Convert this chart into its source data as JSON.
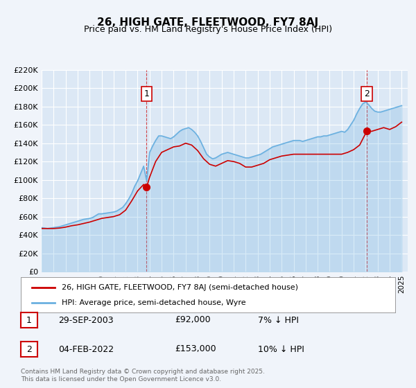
{
  "title": "26, HIGH GATE, FLEETWOOD, FY7 8AJ",
  "subtitle": "Price paid vs. HM Land Registry's House Price Index (HPI)",
  "background_color": "#f0f4fa",
  "plot_bg_color": "#dce8f5",
  "hpi_color": "#6ab0e0",
  "price_color": "#cc0000",
  "ylim": [
    0,
    220000
  ],
  "ytick_values": [
    0,
    20000,
    40000,
    60000,
    80000,
    100000,
    120000,
    140000,
    160000,
    180000,
    200000,
    220000
  ],
  "ytick_labels": [
    "£0",
    "£20K",
    "£40K",
    "£60K",
    "£80K",
    "£100K",
    "£120K",
    "£140K",
    "£160K",
    "£180K",
    "£200K",
    "£220K"
  ],
  "xlim_start": 1995.0,
  "xlim_end": 2025.5,
  "sale1_x": 2003.747,
  "sale1_y": 92000,
  "sale1_label": "1",
  "sale1_date": "29-SEP-2003",
  "sale1_price": "£92,000",
  "sale1_hpi": "7% ↓ HPI",
  "sale2_x": 2022.087,
  "sale2_y": 153000,
  "sale2_label": "2",
  "sale2_date": "04-FEB-2022",
  "sale2_price": "£153,000",
  "sale2_hpi": "10% ↓ HPI",
  "legend_label1": "26, HIGH GATE, FLEETWOOD, FY7 8AJ (semi-detached house)",
  "legend_label2": "HPI: Average price, semi-detached house, Wyre",
  "footer": "Contains HM Land Registry data © Crown copyright and database right 2025.\nThis data is licensed under the Open Government Licence v3.0.",
  "hpi_data": {
    "years": [
      1995.0,
      1995.25,
      1995.5,
      1995.75,
      1996.0,
      1996.25,
      1996.5,
      1996.75,
      1997.0,
      1997.25,
      1997.5,
      1997.75,
      1998.0,
      1998.25,
      1998.5,
      1998.75,
      1999.0,
      1999.25,
      1999.5,
      1999.75,
      2000.0,
      2000.25,
      2000.5,
      2000.75,
      2001.0,
      2001.25,
      2001.5,
      2001.75,
      2002.0,
      2002.25,
      2002.5,
      2002.75,
      2003.0,
      2003.25,
      2003.5,
      2003.75,
      2004.0,
      2004.25,
      2004.5,
      2004.75,
      2005.0,
      2005.25,
      2005.5,
      2005.75,
      2006.0,
      2006.25,
      2006.5,
      2006.75,
      2007.0,
      2007.25,
      2007.5,
      2007.75,
      2008.0,
      2008.25,
      2008.5,
      2008.75,
      2009.0,
      2009.25,
      2009.5,
      2009.75,
      2010.0,
      2010.25,
      2010.5,
      2010.75,
      2011.0,
      2011.25,
      2011.5,
      2011.75,
      2012.0,
      2012.25,
      2012.5,
      2012.75,
      2013.0,
      2013.25,
      2013.5,
      2013.75,
      2014.0,
      2014.25,
      2014.5,
      2014.75,
      2015.0,
      2015.25,
      2015.5,
      2015.75,
      2016.0,
      2016.25,
      2016.5,
      2016.75,
      2017.0,
      2017.25,
      2017.5,
      2017.75,
      2018.0,
      2018.25,
      2018.5,
      2018.75,
      2019.0,
      2019.25,
      2019.5,
      2019.75,
      2020.0,
      2020.25,
      2020.5,
      2020.75,
      2021.0,
      2021.25,
      2021.5,
      2021.75,
      2022.0,
      2022.25,
      2022.5,
      2022.75,
      2023.0,
      2023.25,
      2023.5,
      2023.75,
      2024.0,
      2024.25,
      2024.5,
      2024.75,
      2025.0
    ],
    "values": [
      48000,
      47500,
      47000,
      47500,
      48000,
      48500,
      49000,
      50000,
      51000,
      52000,
      53000,
      54000,
      55000,
      56000,
      57000,
      57500,
      58000,
      59000,
      61000,
      63000,
      63000,
      63500,
      64000,
      64500,
      65000,
      66000,
      68000,
      70000,
      74000,
      79000,
      85000,
      93000,
      99000,
      107000,
      115000,
      99000,
      130000,
      137000,
      143000,
      148000,
      148000,
      147000,
      146000,
      145000,
      147000,
      150000,
      153000,
      155000,
      156000,
      157000,
      155000,
      152000,
      148000,
      142000,
      135000,
      128000,
      125000,
      123000,
      124000,
      126000,
      128000,
      129000,
      130000,
      129000,
      128000,
      127000,
      126000,
      125000,
      124000,
      124000,
      125000,
      126000,
      127000,
      128000,
      130000,
      132000,
      134000,
      136000,
      137000,
      138000,
      139000,
      140000,
      141000,
      142000,
      143000,
      143000,
      143000,
      142000,
      143000,
      144000,
      145000,
      146000,
      147000,
      147000,
      148000,
      148000,
      149000,
      150000,
      151000,
      152000,
      153000,
      152000,
      155000,
      160000,
      165000,
      172000,
      178000,
      183000,
      185000,
      182000,
      178000,
      175000,
      174000,
      174000,
      175000,
      176000,
      177000,
      178000,
      179000,
      180000,
      181000
    ]
  },
  "price_data": {
    "years": [
      1995.0,
      1995.5,
      1996.0,
      1996.5,
      1997.0,
      1997.5,
      1998.0,
      1998.5,
      1999.0,
      1999.5,
      2000.0,
      2000.5,
      2001.0,
      2001.5,
      2002.0,
      2002.5,
      2003.0,
      2003.5,
      2003.747,
      2004.0,
      2004.5,
      2005.0,
      2005.5,
      2006.0,
      2006.5,
      2007.0,
      2007.5,
      2008.0,
      2008.5,
      2009.0,
      2009.5,
      2010.0,
      2010.5,
      2011.0,
      2011.5,
      2012.0,
      2012.5,
      2013.0,
      2013.5,
      2014.0,
      2014.5,
      2015.0,
      2015.5,
      2016.0,
      2016.5,
      2017.0,
      2017.5,
      2018.0,
      2018.5,
      2019.0,
      2019.5,
      2020.0,
      2020.5,
      2021.0,
      2021.5,
      2022.087,
      2022.5,
      2023.0,
      2023.5,
      2024.0,
      2024.5,
      2025.0
    ],
    "values": [
      47000,
      47000,
      47000,
      47500,
      48500,
      50000,
      51000,
      52500,
      54000,
      56000,
      58000,
      59000,
      60000,
      62000,
      67000,
      77000,
      88000,
      95000,
      92000,
      103000,
      120000,
      130000,
      133000,
      136000,
      137000,
      140000,
      138000,
      132000,
      123000,
      117000,
      115000,
      118000,
      121000,
      120000,
      118000,
      114000,
      114000,
      116000,
      118000,
      122000,
      124000,
      126000,
      127000,
      128000,
      128000,
      128000,
      128000,
      128000,
      128000,
      128000,
      128000,
      128000,
      130000,
      133000,
      138000,
      153000,
      153000,
      155000,
      157000,
      155000,
      158000,
      163000
    ]
  }
}
